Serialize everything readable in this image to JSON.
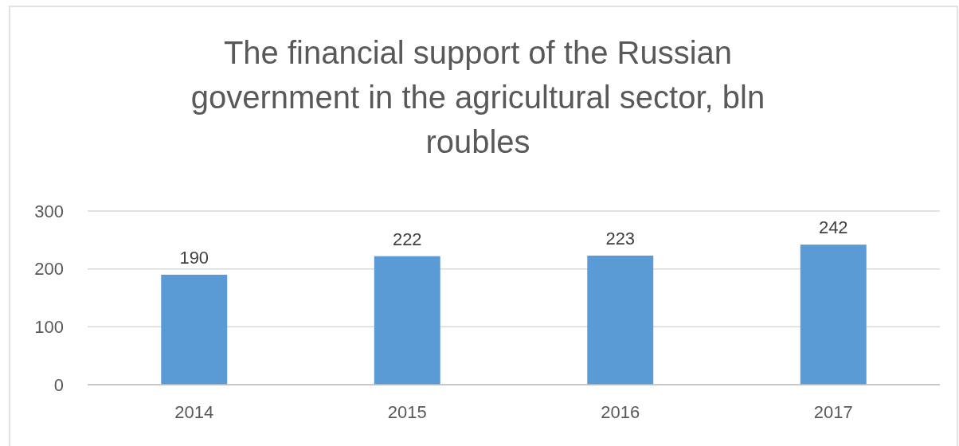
{
  "chart_data": {
    "type": "bar",
    "title": "The financial support of the Russian government in the agricultural sector, bln roubles",
    "categories": [
      "2014",
      "2015",
      "2016",
      "2017"
    ],
    "values": [
      190,
      222,
      223,
      242
    ],
    "color": "#5b9bd5",
    "ylim": [
      0,
      300
    ],
    "yticks": [
      0,
      100,
      200,
      300
    ],
    "grid": "y",
    "data_labels": true
  }
}
